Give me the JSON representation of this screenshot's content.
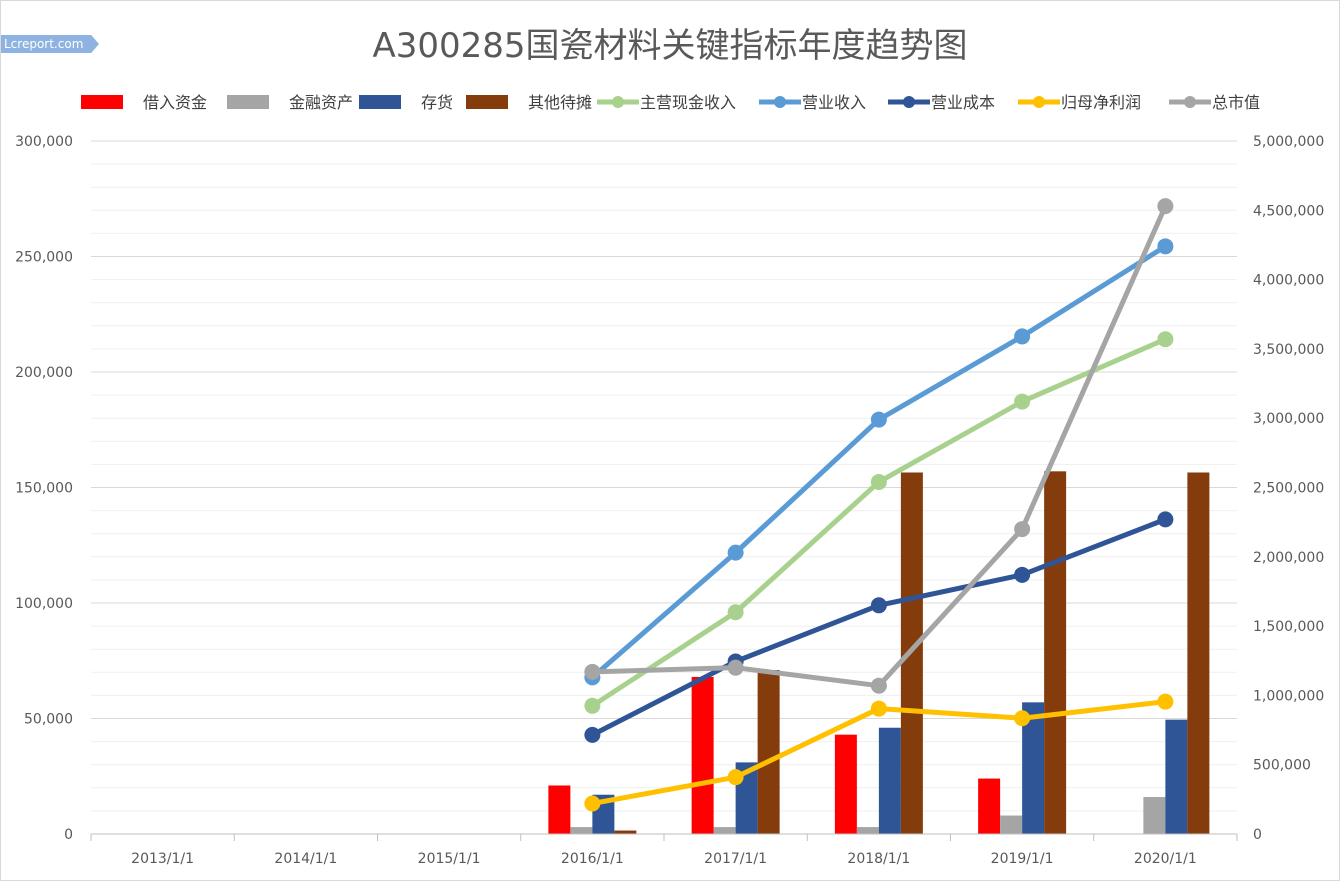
{
  "watermark": "Lcreport.com",
  "chart_data": {
    "type": "bar+line",
    "title": "A300285国瓷材料关键指标年度趋势图",
    "categories": [
      "2013/1/1",
      "2014/1/1",
      "2015/1/1",
      "2016/1/1",
      "2017/1/1",
      "2018/1/1",
      "2019/1/1",
      "2020/1/1"
    ],
    "y_left": {
      "min": 0,
      "max": 300000,
      "ticks": [
        "0",
        "50,000",
        "100,000",
        "150,000",
        "200,000",
        "250,000",
        "300,000"
      ]
    },
    "y_right": {
      "min": 0,
      "max": 5000000,
      "ticks": [
        "0",
        "500,000",
        "1,000,000",
        "1,500,000",
        "2,000,000",
        "2,500,000",
        "3,000,000",
        "3,500,000",
        "4,000,000",
        "4,500,000",
        "5,000,000"
      ]
    },
    "grid": true,
    "legend_position": "top",
    "bar_series": [
      {
        "name": "借入资金",
        "color": "#ff0000",
        "values": [
          null,
          null,
          null,
          21000,
          68000,
          43000,
          24000,
          null
        ]
      },
      {
        "name": "金融资产",
        "color": "#a5a5a5",
        "values": [
          null,
          null,
          null,
          3000,
          3000,
          3000,
          8000,
          16000
        ]
      },
      {
        "name": "存货",
        "color": "#2f5597",
        "values": [
          null,
          null,
          null,
          17000,
          31000,
          46000,
          57000,
          49500
        ]
      },
      {
        "name": "其他待摊",
        "color": "#843c0c",
        "values": [
          null,
          null,
          null,
          1500,
          71000,
          156500,
          157000,
          156500
        ]
      }
    ],
    "line_series": [
      {
        "name": "主营现金收入",
        "color": "#a9d18e",
        "axis": "right",
        "values": [
          null,
          null,
          null,
          925000,
          1600000,
          2540000,
          3120000,
          3570000
        ]
      },
      {
        "name": "营业收入",
        "color": "#5b9bd5",
        "axis": "right",
        "values": [
          null,
          null,
          null,
          1130000,
          2030000,
          2990000,
          3590000,
          4240000
        ]
      },
      {
        "name": "营业成本",
        "color": "#2f5597",
        "axis": "right",
        "values": [
          null,
          null,
          null,
          715000,
          1245000,
          1650000,
          1870000,
          2270000
        ]
      },
      {
        "name": "归母净利润",
        "color": "#ffc000",
        "axis": "right",
        "values": [
          null,
          null,
          null,
          220000,
          410000,
          905000,
          835000,
          955000
        ]
      },
      {
        "name": "总市值",
        "color": "#a5a5a5",
        "axis": "right",
        "values": [
          null,
          null,
          null,
          1170000,
          1200000,
          1070000,
          2200000,
          4530000
        ]
      }
    ]
  }
}
